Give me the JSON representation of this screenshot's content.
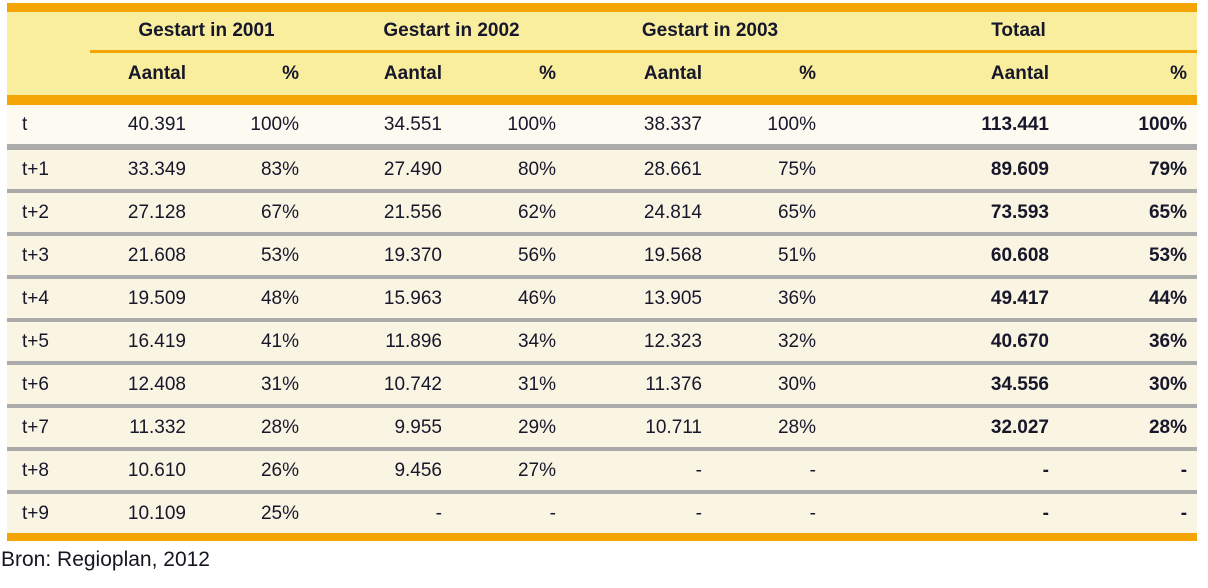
{
  "chart_data": {
    "type": "table",
    "column_groups": [
      {
        "label": "Gestart in 2001"
      },
      {
        "label": "Gestart in 2002"
      },
      {
        "label": "Gestart in 2003"
      },
      {
        "label": "Totaal"
      }
    ],
    "subheaders": {
      "aantal": "Aantal",
      "pct": "%"
    },
    "row_label_header": "",
    "rows": [
      {
        "label": "t",
        "cells": [
          "40.391",
          "100%",
          "34.551",
          "100%",
          "38.337",
          "100%",
          "113.441",
          "100%"
        ]
      },
      {
        "label": "t+1",
        "cells": [
          "33.349",
          "83%",
          "27.490",
          "80%",
          "28.661",
          "75%",
          "89.609",
          "79%"
        ]
      },
      {
        "label": "t+2",
        "cells": [
          "27.128",
          "67%",
          "21.556",
          "62%",
          "24.814",
          "65%",
          "73.593",
          "65%"
        ]
      },
      {
        "label": "t+3",
        "cells": [
          "21.608",
          "53%",
          "19.370",
          "56%",
          "19.568",
          "51%",
          "60.608",
          "53%"
        ]
      },
      {
        "label": "t+4",
        "cells": [
          "19.509",
          "48%",
          "15.963",
          "46%",
          "13.905",
          "36%",
          "49.417",
          "44%"
        ]
      },
      {
        "label": "t+5",
        "cells": [
          "16.419",
          "41%",
          "11.896",
          "34%",
          "12.323",
          "32%",
          "40.670",
          "36%"
        ]
      },
      {
        "label": "t+6",
        "cells": [
          "12.408",
          "31%",
          "10.742",
          "31%",
          "11.376",
          "30%",
          "34.556",
          "30%"
        ]
      },
      {
        "label": "t+7",
        "cells": [
          "11.332",
          "28%",
          "9.955",
          "29%",
          "10.711",
          "28%",
          "32.027",
          "28%"
        ]
      },
      {
        "label": "t+8",
        "cells": [
          "10.610",
          "26%",
          "9.456",
          "27%",
          "-",
          "-",
          "-",
          "-"
        ]
      },
      {
        "label": "t+9",
        "cells": [
          "10.109",
          "25%",
          "-",
          "-",
          "-",
          "-",
          "-",
          "-"
        ]
      }
    ],
    "source": "Bron: Regioplan, 2012"
  },
  "colors": {
    "accent_orange": "#f2a504",
    "header_yellow": "#f9ee9d",
    "row_cream": "#faf4e3",
    "first_row_cream": "#fdfbf1",
    "separator_gray": "#ababab",
    "text": "#17172b"
  }
}
